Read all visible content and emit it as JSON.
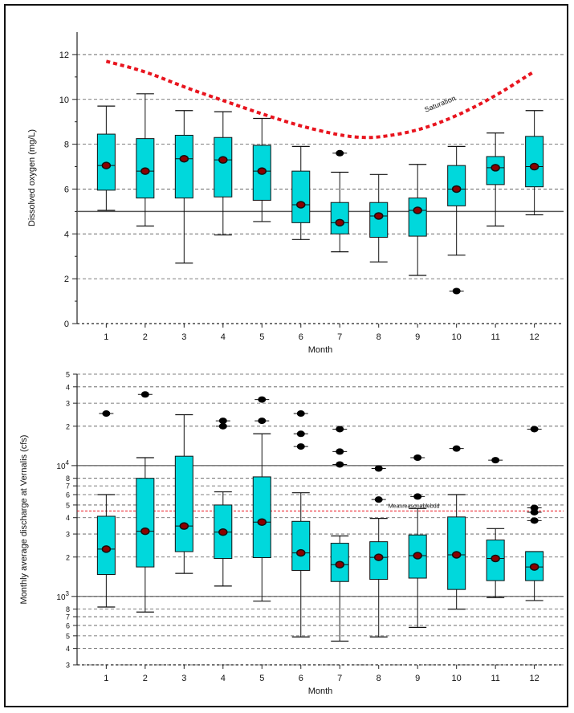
{
  "chart_data": [
    {
      "type": "box",
      "xlabel": "Month",
      "ylabel": "Dissolved oxygen (mg/L)",
      "ylim": [
        0,
        13
      ],
      "yticks": [
        0,
        2,
        4,
        6,
        8,
        10,
        12
      ],
      "categories": [
        "1",
        "2",
        "3",
        "4",
        "5",
        "6",
        "7",
        "8",
        "9",
        "10",
        "11",
        "12"
      ],
      "grid": "horizontal dashed",
      "colors": {
        "box": "#00d8dc",
        "mean": "#8b0000",
        "outlier": "#000000",
        "saturation": "#e8141e",
        "reference": "#555555"
      },
      "boxes": [
        {
          "whisker_low": 5.05,
          "q1": 5.95,
          "median": 7.05,
          "q3": 8.45,
          "whisker_high": 9.7,
          "mean": 7.05,
          "outliers": []
        },
        {
          "whisker_low": 4.35,
          "q1": 5.6,
          "median": 6.8,
          "q3": 8.25,
          "whisker_high": 10.25,
          "mean": 6.8,
          "outliers": []
        },
        {
          "whisker_low": 2.7,
          "q1": 5.6,
          "median": 7.35,
          "q3": 8.4,
          "whisker_high": 9.5,
          "mean": 7.35,
          "outliers": []
        },
        {
          "whisker_low": 3.95,
          "q1": 5.65,
          "median": 7.3,
          "q3": 8.3,
          "whisker_high": 9.45,
          "mean": 7.3,
          "outliers": []
        },
        {
          "whisker_low": 4.55,
          "q1": 5.5,
          "median": 6.8,
          "q3": 7.95,
          "whisker_high": 9.15,
          "mean": 6.8,
          "outliers": []
        },
        {
          "whisker_low": 3.75,
          "q1": 4.5,
          "median": 5.3,
          "q3": 6.8,
          "whisker_high": 7.9,
          "mean": 5.3,
          "outliers": []
        },
        {
          "whisker_low": 3.2,
          "q1": 4.0,
          "median": 4.5,
          "q3": 5.4,
          "whisker_high": 6.75,
          "mean": 4.5,
          "outliers": [
            7.6
          ]
        },
        {
          "whisker_low": 2.75,
          "q1": 3.85,
          "median": 4.8,
          "q3": 5.4,
          "whisker_high": 6.65,
          "mean": 4.8,
          "outliers": []
        },
        {
          "whisker_low": 2.15,
          "q1": 3.9,
          "median": 5.05,
          "q3": 5.6,
          "whisker_high": 7.1,
          "mean": 5.05,
          "outliers": []
        },
        {
          "whisker_low": 3.05,
          "q1": 5.25,
          "median": 6.0,
          "q3": 7.05,
          "whisker_high": 7.9,
          "mean": 6.0,
          "outliers": [
            1.45
          ]
        },
        {
          "whisker_low": 4.35,
          "q1": 6.2,
          "median": 6.95,
          "q3": 7.45,
          "whisker_high": 8.5,
          "mean": 6.95,
          "outliers": []
        },
        {
          "whisker_low": 4.85,
          "q1": 6.1,
          "median": 7.0,
          "q3": 8.35,
          "whisker_high": 9.5,
          "mean": 7.0,
          "outliers": []
        }
      ],
      "reference_line": 5.0,
      "saturation_curve": {
        "label": "Saturation",
        "x": [
          1,
          2,
          3,
          4,
          5,
          6,
          7,
          7.5,
          8,
          9,
          10,
          11,
          12
        ],
        "y": [
          11.7,
          11.25,
          10.55,
          9.95,
          9.35,
          8.8,
          8.4,
          8.3,
          8.3,
          8.6,
          9.25,
          10.15,
          11.25
        ]
      }
    },
    {
      "type": "box",
      "xlabel": "Month",
      "ylabel": "Monthly average discharge at Vernalis (cfs)",
      "yscale": "log",
      "ylim": [
        300,
        50000
      ],
      "decade_labels": [
        {
          "value": 1000,
          "base": "10",
          "exp": "3"
        },
        {
          "value": 10000,
          "base": "10",
          "exp": "4"
        }
      ],
      "minor_tick_labels": [
        "3",
        "4",
        "5",
        "6",
        "7",
        "8",
        "2",
        "3",
        "4",
        "5",
        "6",
        "7",
        "8",
        "2",
        "3",
        "4",
        "5"
      ],
      "minor_tick_values": [
        300,
        400,
        500,
        600,
        700,
        800,
        2000,
        3000,
        4000,
        5000,
        6000,
        7000,
        8000,
        20000,
        30000,
        40000,
        50000
      ],
      "categories": [
        "1",
        "2",
        "3",
        "4",
        "5",
        "6",
        "7",
        "8",
        "9",
        "10",
        "11",
        "12"
      ],
      "grid": "horizontal dashed",
      "colors": {
        "box": "#00d8dc",
        "mean": "#8b0000",
        "outlier": "#000000",
        "reference": "#e8141e"
      },
      "boxes": [
        {
          "whisker_low": 830,
          "q1": 1470,
          "median": 2300,
          "q3": 4100,
          "whisker_high": 6000,
          "mean": 2300,
          "outliers": [
            25000
          ]
        },
        {
          "whisker_low": 760,
          "q1": 1680,
          "median": 3150,
          "q3": 8000,
          "whisker_high": 11500,
          "mean": 3150,
          "outliers": [
            35000
          ]
        },
        {
          "whisker_low": 1500,
          "q1": 2200,
          "median": 3450,
          "q3": 11800,
          "whisker_high": 24500,
          "mean": 3450,
          "outliers": []
        },
        {
          "whisker_low": 1200,
          "q1": 1950,
          "median": 3100,
          "q3": 5000,
          "whisker_high": 6300,
          "mean": 3100,
          "outliers": [
            20000,
            22000
          ]
        },
        {
          "whisker_low": 920,
          "q1": 1980,
          "median": 3700,
          "q3": 8200,
          "whisker_high": 17500,
          "mean": 3700,
          "outliers": [
            22000,
            32000
          ]
        },
        {
          "whisker_low": 490,
          "q1": 1580,
          "median": 2150,
          "q3": 3750,
          "whisker_high": 6200,
          "mean": 2150,
          "outliers": [
            14000,
            17500,
            25000
          ]
        },
        {
          "whisker_low": 455,
          "q1": 1300,
          "median": 1750,
          "q3": 2550,
          "whisker_high": 2900,
          "mean": 1750,
          "outliers": [
            10200,
            12800,
            19000
          ]
        },
        {
          "whisker_low": 490,
          "q1": 1350,
          "median": 1990,
          "q3": 2620,
          "whisker_high": 3950,
          "mean": 1990,
          "outliers": [
            5500,
            9500
          ]
        },
        {
          "whisker_low": 580,
          "q1": 1380,
          "median": 2050,
          "q3": 2950,
          "whisker_high": 4700,
          "mean": 2050,
          "outliers": [
            5800,
            11500
          ]
        },
        {
          "whisker_low": 800,
          "q1": 1130,
          "median": 2080,
          "q3": 4050,
          "whisker_high": 6000,
          "mean": 2080,
          "outliers": [
            13500
          ]
        },
        {
          "whisker_low": 980,
          "q1": 1320,
          "median": 1950,
          "q3": 2700,
          "whisker_high": 3300,
          "mean": 1950,
          "outliers": [
            11000
          ]
        },
        {
          "whisker_low": 930,
          "q1": 1320,
          "median": 1680,
          "q3": 2200,
          "whisker_high": 2200,
          "mean": 1680,
          "outliers": [
            3800,
            4400,
            4750,
            19000
          ]
        }
      ],
      "reference_line": 4500,
      "reference_label": "Meanreasonablebdd"
    }
  ]
}
